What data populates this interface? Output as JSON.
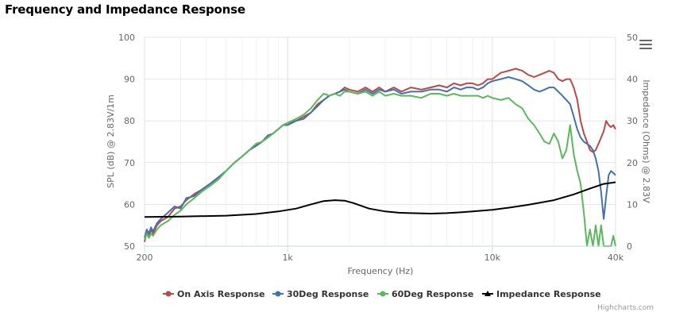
{
  "chart_data": {
    "type": "line",
    "title": "Frequency and Impedance Response",
    "xlabel": "Frequency (Hz)",
    "ylabel_left": "SPL (dB) @ 2.83V/1m",
    "ylabel_right": "Impedance (Ohms) @ 2.83V",
    "x_scale": "log",
    "xlim": [
      200,
      40000
    ],
    "x_ticks": [
      200,
      1000,
      10000,
      40000
    ],
    "x_tick_labels": [
      "200",
      "1k",
      "10k",
      "40k"
    ],
    "ylim_left": [
      50,
      100
    ],
    "y_ticks_left": [
      "50",
      "60",
      "70",
      "80",
      "90",
      "100"
    ],
    "ylim_right": [
      0,
      50
    ],
    "y_ticks_right": [
      "0",
      "10",
      "20",
      "30",
      "40",
      "50"
    ],
    "grid": true,
    "legend_position": "bottom-center",
    "series": [
      {
        "name": "On Axis Response",
        "axis": "left",
        "color": "#b94a48",
        "points": [
          [
            200,
            51
          ],
          [
            205,
            53.5
          ],
          [
            210,
            52
          ],
          [
            215,
            54
          ],
          [
            220,
            53
          ],
          [
            230,
            55
          ],
          [
            240,
            56
          ],
          [
            260,
            57
          ],
          [
            280,
            59
          ],
          [
            300,
            59.5
          ],
          [
            320,
            61
          ],
          [
            350,
            62.5
          ],
          [
            380,
            63.5
          ],
          [
            420,
            65
          ],
          [
            460,
            66.5
          ],
          [
            500,
            68
          ],
          [
            550,
            70
          ],
          [
            600,
            71.5
          ],
          [
            650,
            73
          ],
          [
            700,
            74
          ],
          [
            750,
            75
          ],
          [
            800,
            76
          ],
          [
            850,
            77
          ],
          [
            900,
            78
          ],
          [
            950,
            79
          ],
          [
            1000,
            79.5
          ],
          [
            1100,
            80
          ],
          [
            1200,
            81
          ],
          [
            1300,
            82
          ],
          [
            1400,
            84
          ],
          [
            1500,
            85
          ],
          [
            1600,
            86
          ],
          [
            1700,
            86.5
          ],
          [
            1800,
            87
          ],
          [
            1900,
            88
          ],
          [
            2000,
            87.5
          ],
          [
            2200,
            87
          ],
          [
            2400,
            88
          ],
          [
            2600,
            87
          ],
          [
            2800,
            88
          ],
          [
            3000,
            87
          ],
          [
            3300,
            88
          ],
          [
            3600,
            87
          ],
          [
            4000,
            88
          ],
          [
            4500,
            87.5
          ],
          [
            5000,
            88
          ],
          [
            5500,
            88.5
          ],
          [
            6000,
            88
          ],
          [
            6500,
            89
          ],
          [
            7000,
            88.5
          ],
          [
            7500,
            89
          ],
          [
            8000,
            89
          ],
          [
            8500,
            88.5
          ],
          [
            9000,
            89
          ],
          [
            9500,
            90
          ],
          [
            10000,
            90
          ],
          [
            11000,
            91.5
          ],
          [
            12000,
            92
          ],
          [
            13000,
            92.5
          ],
          [
            14000,
            92
          ],
          [
            15000,
            91
          ],
          [
            16000,
            90.5
          ],
          [
            17000,
            91
          ],
          [
            18000,
            91.5
          ],
          [
            19000,
            92
          ],
          [
            20000,
            91.5
          ],
          [
            21000,
            90
          ],
          [
            22000,
            89.5
          ],
          [
            23000,
            90
          ],
          [
            24000,
            90
          ],
          [
            25000,
            88
          ],
          [
            26000,
            85
          ],
          [
            27000,
            80
          ],
          [
            28000,
            77
          ],
          [
            29000,
            75
          ],
          [
            30000,
            73
          ],
          [
            31000,
            72.5
          ],
          [
            32000,
            73
          ],
          [
            33000,
            74.5
          ],
          [
            34000,
            76
          ],
          [
            35000,
            77.5
          ],
          [
            36000,
            80
          ],
          [
            37000,
            79
          ],
          [
            38000,
            78.5
          ],
          [
            39000,
            79
          ],
          [
            40000,
            78
          ]
        ]
      },
      {
        "name": "30Deg Response",
        "axis": "left",
        "color": "#4572a7",
        "points": [
          [
            200,
            52
          ],
          [
            205,
            54
          ],
          [
            210,
            53
          ],
          [
            215,
            54.5
          ],
          [
            220,
            53.5
          ],
          [
            230,
            55.5
          ],
          [
            240,
            56.5
          ],
          [
            260,
            58
          ],
          [
            280,
            59.5
          ],
          [
            300,
            59
          ],
          [
            320,
            61.5
          ],
          [
            350,
            62
          ],
          [
            380,
            63.5
          ],
          [
            420,
            65
          ],
          [
            460,
            66.5
          ],
          [
            500,
            68
          ],
          [
            550,
            70
          ],
          [
            600,
            71.5
          ],
          [
            650,
            73
          ],
          [
            700,
            74
          ],
          [
            750,
            75
          ],
          [
            800,
            76.5
          ],
          [
            850,
            77
          ],
          [
            900,
            78
          ],
          [
            950,
            79
          ],
          [
            1000,
            79
          ],
          [
            1100,
            80
          ],
          [
            1200,
            80.5
          ],
          [
            1300,
            82
          ],
          [
            1400,
            83.5
          ],
          [
            1500,
            85
          ],
          [
            1600,
            86
          ],
          [
            1700,
            86.5
          ],
          [
            1800,
            87
          ],
          [
            1900,
            87.5
          ],
          [
            2000,
            87
          ],
          [
            2200,
            86.5
          ],
          [
            2400,
            87.5
          ],
          [
            2600,
            86.5
          ],
          [
            2800,
            87.5
          ],
          [
            3000,
            87
          ],
          [
            3300,
            87.5
          ],
          [
            3600,
            86.5
          ],
          [
            4000,
            87
          ],
          [
            4500,
            87
          ],
          [
            5000,
            87.5
          ],
          [
            5500,
            87.5
          ],
          [
            6000,
            87
          ],
          [
            6500,
            88
          ],
          [
            7000,
            87.5
          ],
          [
            7500,
            88
          ],
          [
            8000,
            88
          ],
          [
            8500,
            87.5
          ],
          [
            9000,
            88
          ],
          [
            9500,
            89
          ],
          [
            10000,
            89.5
          ],
          [
            11000,
            90
          ],
          [
            12000,
            90.5
          ],
          [
            13000,
            90
          ],
          [
            14000,
            89.5
          ],
          [
            15000,
            88.5
          ],
          [
            16000,
            87.5
          ],
          [
            17000,
            87
          ],
          [
            18000,
            87.5
          ],
          [
            19000,
            88
          ],
          [
            20000,
            88
          ],
          [
            21000,
            87
          ],
          [
            22000,
            86
          ],
          [
            23000,
            85
          ],
          [
            24000,
            84
          ],
          [
            25000,
            81
          ],
          [
            26000,
            78
          ],
          [
            27000,
            76
          ],
          [
            28000,
            75
          ],
          [
            29000,
            74.5
          ],
          [
            30000,
            74
          ],
          [
            31000,
            73
          ],
          [
            32000,
            71
          ],
          [
            33000,
            68
          ],
          [
            34000,
            63
          ],
          [
            35000,
            56.5
          ],
          [
            36000,
            62
          ],
          [
            37000,
            67
          ],
          [
            38000,
            68
          ],
          [
            39000,
            67.5
          ],
          [
            40000,
            67
          ]
        ]
      },
      {
        "name": "60Deg Response",
        "axis": "left",
        "color": "#5cb85c",
        "points": [
          [
            200,
            51.5
          ],
          [
            205,
            53
          ],
          [
            210,
            52
          ],
          [
            215,
            53
          ],
          [
            220,
            52.5
          ],
          [
            230,
            54
          ],
          [
            240,
            55
          ],
          [
            260,
            56
          ],
          [
            280,
            57.5
          ],
          [
            300,
            58.5
          ],
          [
            320,
            60
          ],
          [
            350,
            61.5
          ],
          [
            380,
            63
          ],
          [
            420,
            64.5
          ],
          [
            460,
            66
          ],
          [
            500,
            68
          ],
          [
            550,
            70
          ],
          [
            600,
            71.5
          ],
          [
            650,
            73
          ],
          [
            700,
            74.5
          ],
          [
            750,
            75
          ],
          [
            800,
            76
          ],
          [
            850,
            77
          ],
          [
            900,
            78
          ],
          [
            950,
            79
          ],
          [
            1000,
            79.5
          ],
          [
            1100,
            80.5
          ],
          [
            1200,
            81.5
          ],
          [
            1300,
            83
          ],
          [
            1400,
            85
          ],
          [
            1500,
            86.5
          ],
          [
            1600,
            86
          ],
          [
            1700,
            86.5
          ],
          [
            1800,
            86
          ],
          [
            1900,
            87
          ],
          [
            2000,
            87
          ],
          [
            2200,
            86.5
          ],
          [
            2400,
            87
          ],
          [
            2600,
            86
          ],
          [
            2800,
            87
          ],
          [
            3000,
            86
          ],
          [
            3300,
            86.5
          ],
          [
            3600,
            86
          ],
          [
            4000,
            86
          ],
          [
            4500,
            85.5
          ],
          [
            5000,
            86.5
          ],
          [
            5500,
            86.5
          ],
          [
            6000,
            86
          ],
          [
            6500,
            86.5
          ],
          [
            7000,
            86
          ],
          [
            7500,
            86
          ],
          [
            8000,
            86
          ],
          [
            8500,
            86
          ],
          [
            9000,
            85.5
          ],
          [
            9500,
            86
          ],
          [
            10000,
            85.5
          ],
          [
            11000,
            85
          ],
          [
            12000,
            85.5
          ],
          [
            13000,
            84
          ],
          [
            14000,
            83
          ],
          [
            15000,
            80.5
          ],
          [
            16000,
            79
          ],
          [
            17000,
            77
          ],
          [
            18000,
            75
          ],
          [
            19000,
            74.5
          ],
          [
            20000,
            77
          ],
          [
            21000,
            75
          ],
          [
            22000,
            71
          ],
          [
            23000,
            73
          ],
          [
            24000,
            79
          ],
          [
            25000,
            72
          ],
          [
            26000,
            68
          ],
          [
            27000,
            65
          ],
          [
            28000,
            58
          ],
          [
            29000,
            50
          ],
          [
            30000,
            54
          ],
          [
            31000,
            50
          ],
          [
            32000,
            55
          ],
          [
            33000,
            50
          ],
          [
            34000,
            55
          ],
          [
            35000,
            50
          ],
          [
            36000,
            50
          ],
          [
            38000,
            50
          ],
          [
            39000,
            52.5
          ],
          [
            40000,
            50
          ]
        ]
      },
      {
        "name": "Impedance Response",
        "axis": "right",
        "color": "#000000",
        "points": [
          [
            200,
            7
          ],
          [
            300,
            7.1
          ],
          [
            500,
            7.3
          ],
          [
            700,
            7.7
          ],
          [
            900,
            8.3
          ],
          [
            1100,
            9
          ],
          [
            1300,
            10
          ],
          [
            1500,
            10.8
          ],
          [
            1700,
            11
          ],
          [
            1900,
            10.9
          ],
          [
            2100,
            10.3
          ],
          [
            2500,
            9
          ],
          [
            3000,
            8.3
          ],
          [
            3500,
            8
          ],
          [
            4000,
            7.9
          ],
          [
            5000,
            7.8
          ],
          [
            6000,
            7.9
          ],
          [
            7000,
            8.1
          ],
          [
            8000,
            8.3
          ],
          [
            10000,
            8.7
          ],
          [
            12000,
            9.2
          ],
          [
            15000,
            9.9
          ],
          [
            20000,
            11
          ],
          [
            25000,
            12.4
          ],
          [
            30000,
            13.8
          ],
          [
            35000,
            14.9
          ],
          [
            40000,
            15.3
          ]
        ]
      }
    ]
  },
  "legend": {
    "items": [
      {
        "label": "On Axis Response",
        "color": "#b94a48"
      },
      {
        "label": "30Deg Response",
        "color": "#4572a7"
      },
      {
        "label": "60Deg Response",
        "color": "#5cb85c"
      },
      {
        "label": "Impedance Response",
        "color": "#000000"
      }
    ]
  },
  "credits": "Highcharts.com"
}
